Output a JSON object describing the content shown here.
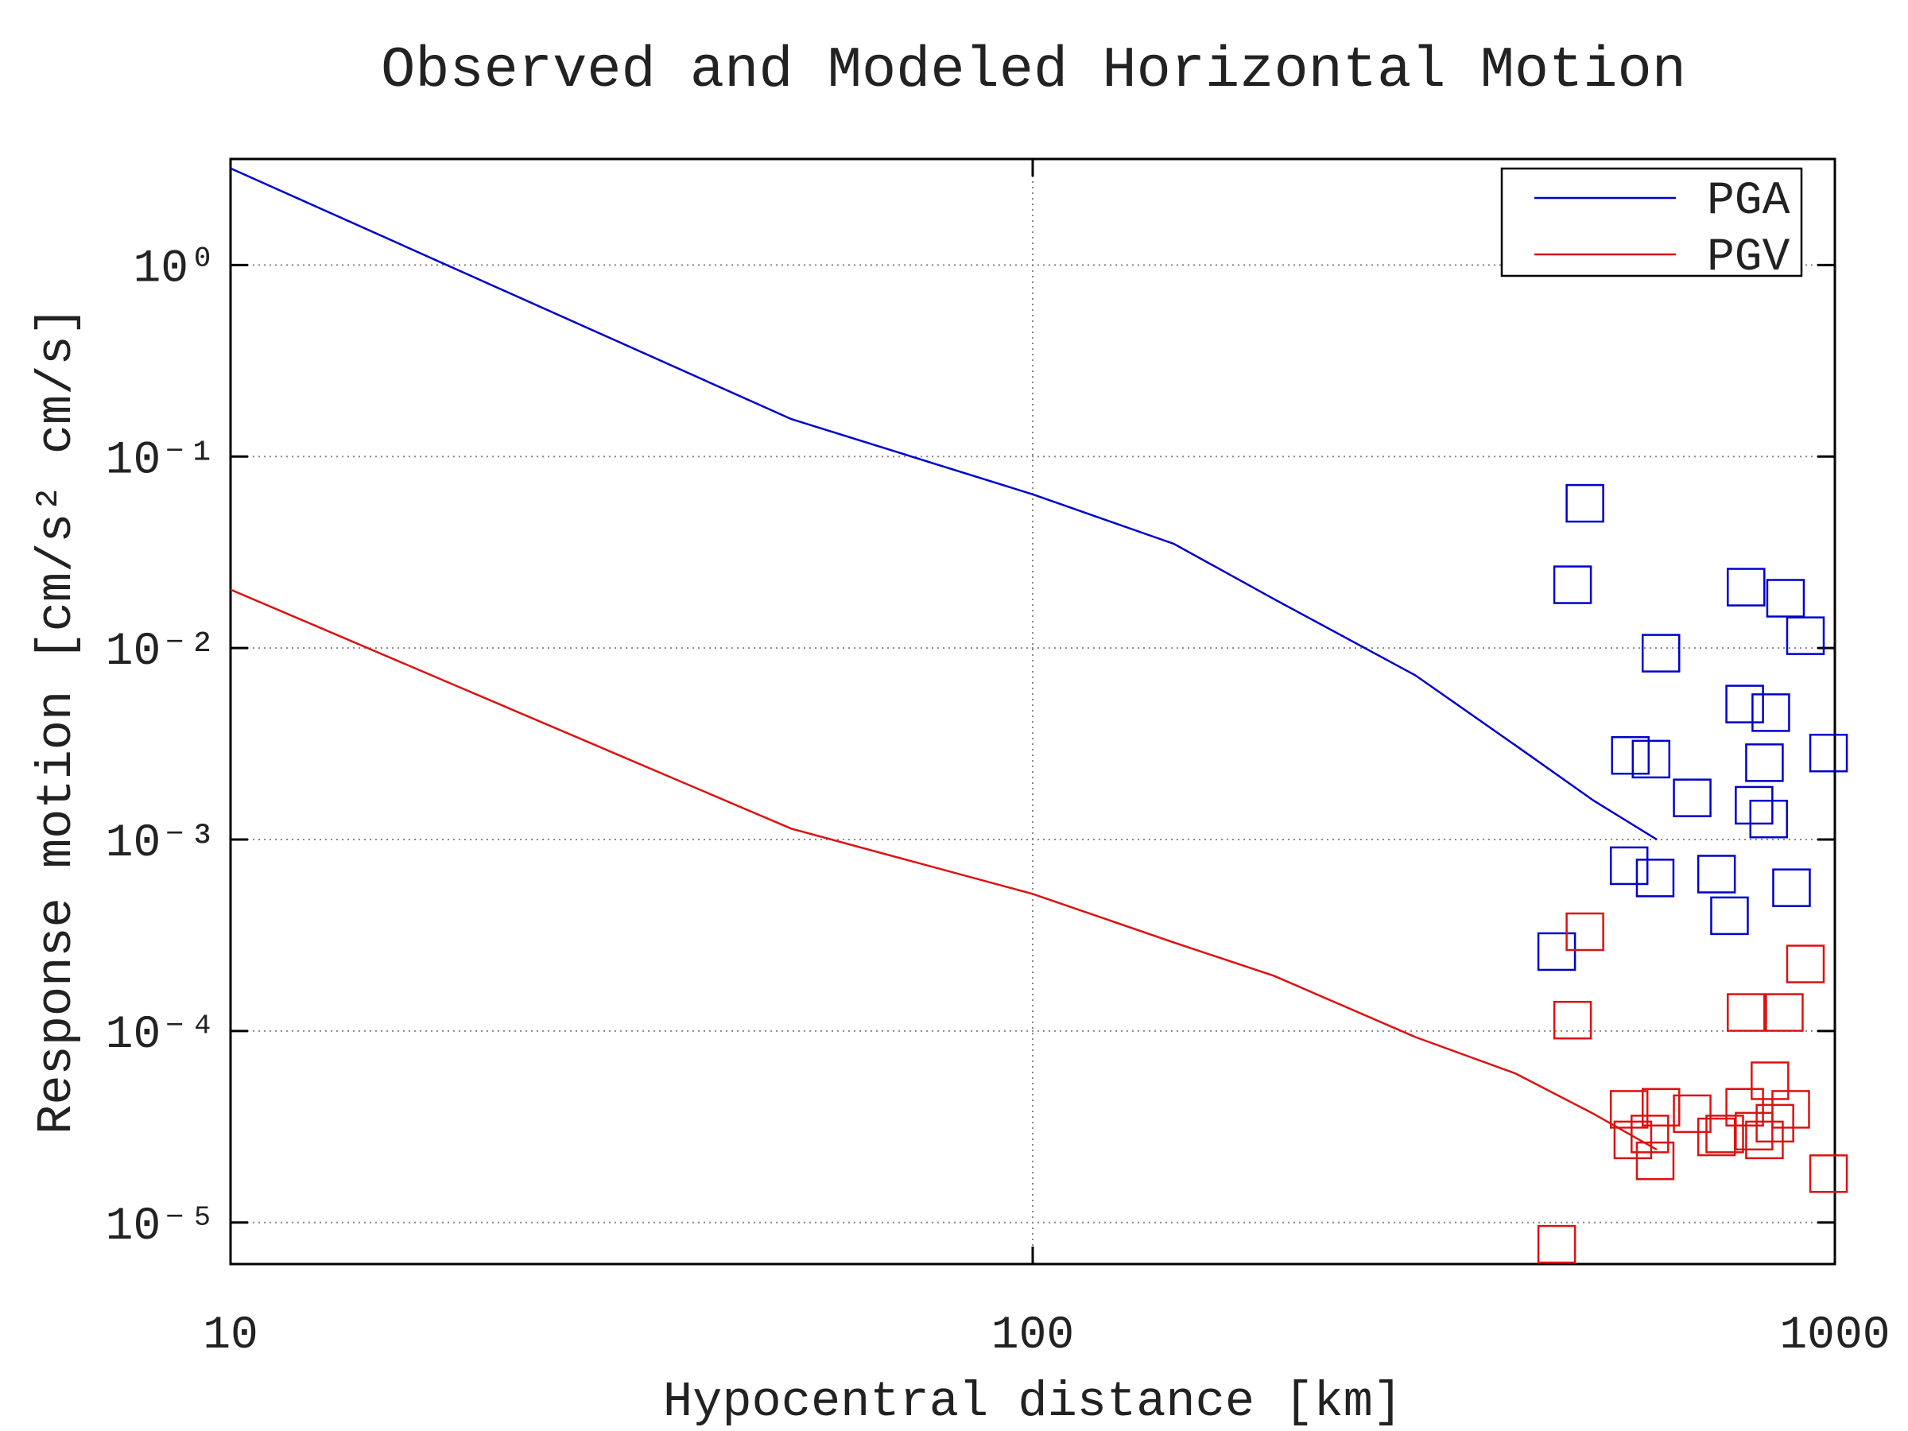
{
  "chart_data": {
    "type": "line",
    "title": "Observed and Modeled Horizontal Motion",
    "x_label": "Hypocentral distance [km]",
    "y_label": "Response motion [cm/s²  cm/s]",
    "xscale": "log",
    "yscale": "log",
    "xlim": [
      10,
      1000
    ],
    "ylim": [
      6.07e-06,
      3.58
    ],
    "xticks": [
      10,
      100,
      1000
    ],
    "yticks": [
      {
        "value": 1,
        "label": "10⁰"
      },
      {
        "value": 0.1,
        "label": "10⁻¹"
      },
      {
        "value": 0.01,
        "label": "10⁻²"
      },
      {
        "value": 0.001,
        "label": "10⁻³"
      },
      {
        "value": 0.0001,
        "label": "10⁻⁴"
      },
      {
        "value": 1e-05,
        "label": "10⁻⁵"
      }
    ],
    "grid": true,
    "legend": "upper right",
    "series": [
      {
        "name": "PGA",
        "color": "#0000cc",
        "x": [
          10,
          50,
          100,
          150,
          200,
          300,
          400,
          500,
          600
        ],
        "values": [
          3.2,
          0.157,
          0.0635,
          0.035,
          0.018,
          0.0072,
          0.0031,
          0.0016,
          0.001
        ]
      },
      {
        "name": "PGV",
        "color": "#dd1111",
        "x": [
          10,
          50,
          100,
          150,
          200,
          300,
          400,
          500,
          600
        ],
        "values": [
          0.0202,
          0.00114,
          0.00052,
          0.00029,
          0.000194,
          9.3e-05,
          6e-05,
          3.7e-05,
          2.4e-05
        ]
      }
    ],
    "observed": [
      {
        "color": "#0000cc",
        "marker": "square",
        "x": [
          488,
          471,
          607,
          775,
          868,
          919,
          772,
          832,
          556,
          590,
          817,
          982,
          664,
          793,
          827,
          554,
          597,
          712,
          739,
          883,
          450
        ],
        "values": [
          0.057,
          0.0214,
          0.0094,
          0.0208,
          0.0182,
          0.0116,
          0.0051,
          0.0046,
          0.00275,
          0.00263,
          0.00252,
          0.00283,
          0.00165,
          0.00151,
          0.00128,
          0.00073,
          0.00063,
          0.00066,
          0.0004,
          0.00056,
          0.00026
        ]
      },
      {
        "color": "#dd1111",
        "marker": "square",
        "x": [
          488,
          471,
          775,
          865,
          919,
          830,
          554,
          607,
          664,
          772,
          881,
          560,
          588,
          597,
          712,
          729,
          793,
          817,
          842,
          982,
          450
        ],
        "values": [
          0.00033,
          0.000114,
          0.000125,
          0.000125,
          0.000224,
          5.5e-05,
          3.9e-05,
          4e-05,
          3.7e-05,
          4e-05,
          3.9e-05,
          2.7e-05,
          2.9e-05,
          2.1e-05,
          2.8e-05,
          2.9e-05,
          3e-05,
          2.7e-05,
          3.3e-05,
          1.8e-05,
          7.7e-06
        ]
      }
    ]
  }
}
